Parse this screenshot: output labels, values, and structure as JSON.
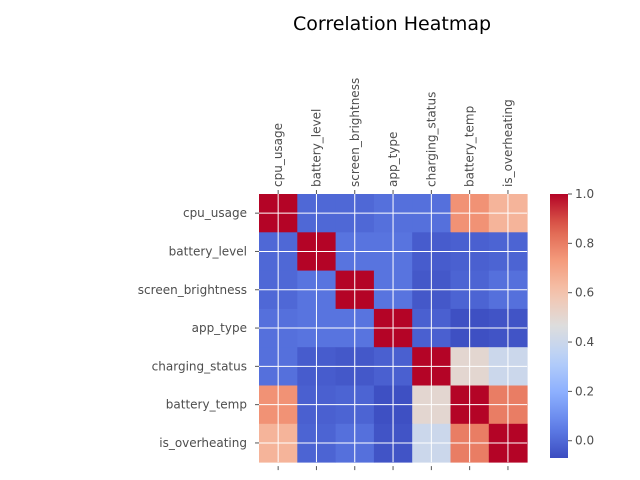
{
  "chart_data": {
    "type": "heatmap",
    "title": "Correlation Heatmap",
    "xlabel": "",
    "ylabel": "",
    "labels": [
      "cpu_usage",
      "battery_level",
      "screen_brightness",
      "app_type",
      "charging_status",
      "battery_temp",
      "is_overheating"
    ],
    "matrix": [
      [
        1.0,
        0.0,
        0.0,
        0.02,
        0.02,
        0.75,
        0.65
      ],
      [
        0.0,
        1.0,
        0.03,
        0.03,
        -0.03,
        -0.02,
        -0.01
      ],
      [
        0.0,
        0.03,
        1.0,
        0.03,
        -0.04,
        -0.01,
        0.02
      ],
      [
        0.02,
        0.03,
        0.03,
        1.0,
        -0.02,
        -0.06,
        -0.05
      ],
      [
        0.02,
        -0.03,
        -0.04,
        -0.02,
        1.0,
        0.5,
        0.4
      ],
      [
        0.75,
        -0.02,
        -0.01,
        -0.06,
        0.5,
        1.0,
        0.8
      ],
      [
        0.65,
        -0.01,
        0.02,
        -0.05,
        0.4,
        0.8,
        1.0
      ]
    ],
    "colormap": "coolwarm",
    "vmin": -0.07,
    "vmax": 1.0,
    "grid": true,
    "x_tick_position": "top",
    "colorbar": {
      "ticks": [
        0.0,
        0.2,
        0.4,
        0.6,
        0.8,
        1.0
      ],
      "tick_labels": [
        "0.0",
        "0.2",
        "0.4",
        "0.6",
        "0.8",
        "1.0"
      ],
      "position": "right"
    }
  }
}
